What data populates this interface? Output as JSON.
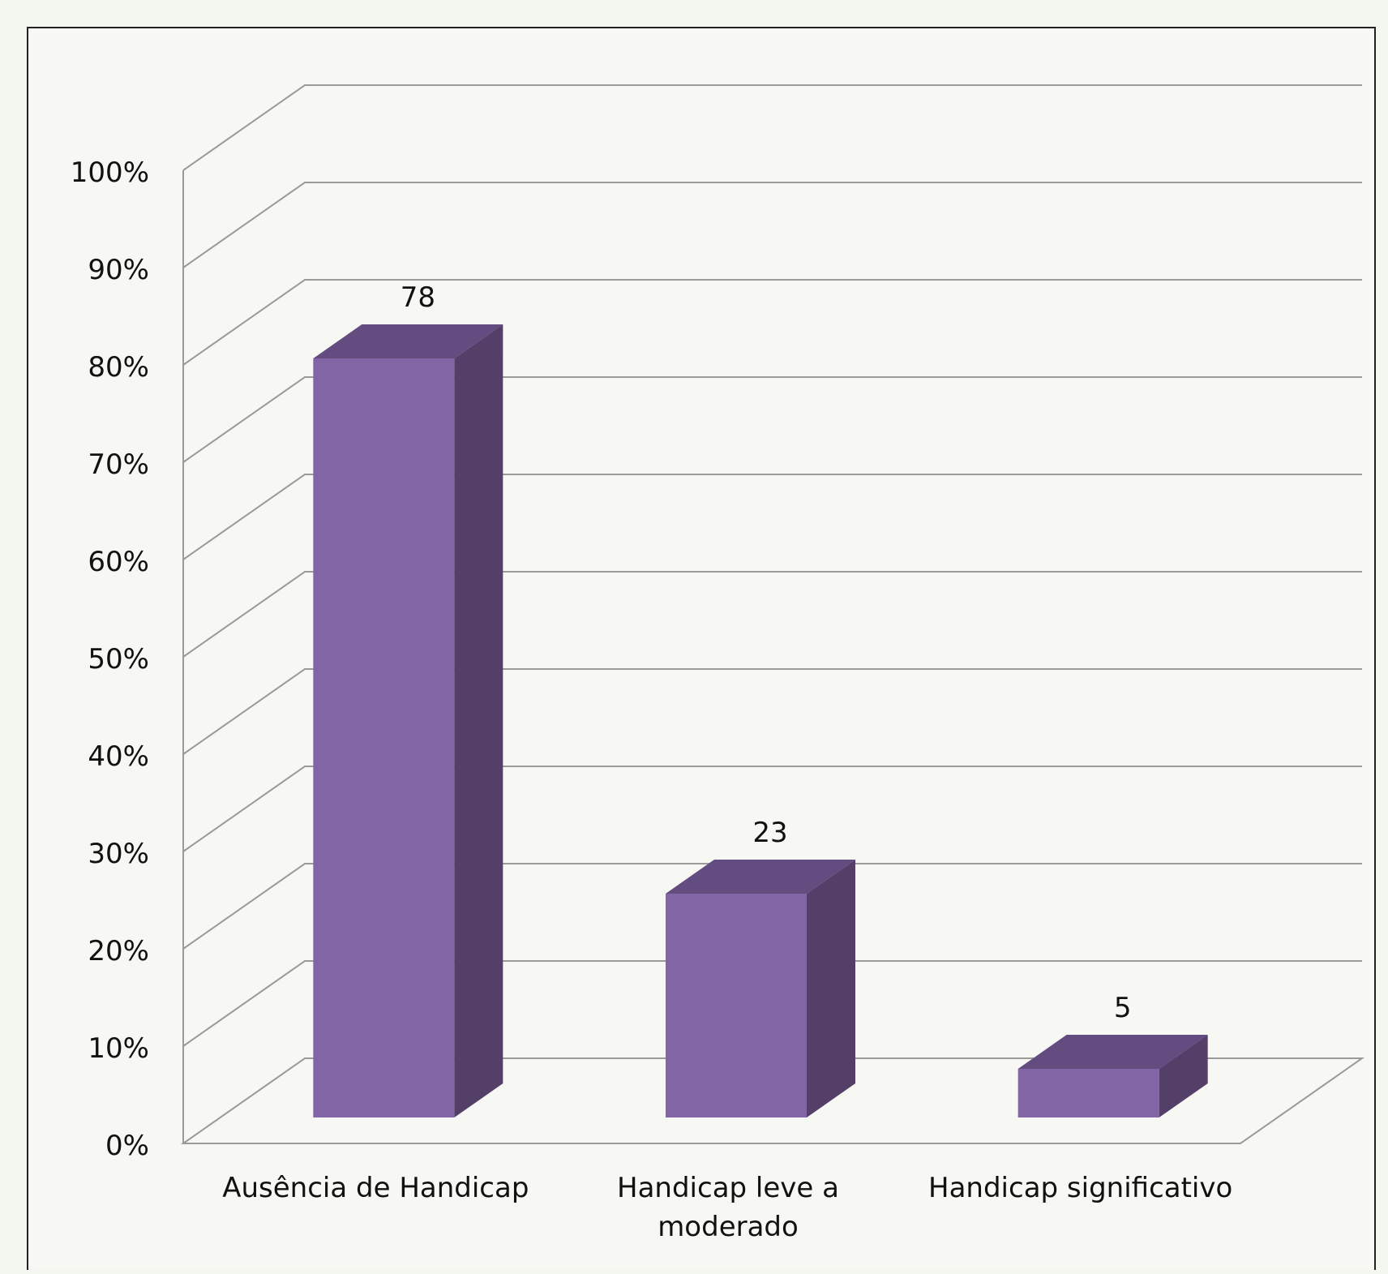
{
  "chart_data": {
    "type": "bar",
    "title": "",
    "xlabel": "",
    "ylabel": "",
    "categories": [
      "Ausência de Handicap",
      "Handicap leve a moderado",
      "Handicap significativo"
    ],
    "category_lines": [
      [
        "Ausência de Handicap"
      ],
      [
        "Handicap leve a",
        "moderado"
      ],
      [
        "Handicap significativo"
      ]
    ],
    "values": [
      78,
      23,
      5
    ],
    "data_labels": [
      "78",
      "23",
      "5"
    ],
    "ylim": [
      0,
      100
    ],
    "y_ticks": [
      0,
      10,
      20,
      30,
      40,
      50,
      60,
      70,
      80,
      90,
      100
    ],
    "y_tick_labels": [
      "0%",
      "10%",
      "20%",
      "30%",
      "40%",
      "50%",
      "60%",
      "70%",
      "80%",
      "90%",
      "100%"
    ],
    "style": "3d-column",
    "grid": true,
    "legend": "none",
    "colors": {
      "bar_front": "#8165a5",
      "bar_side": "#533f68",
      "bar_top": "#634c80",
      "grid": "#9a9a9a",
      "frame": "#222222",
      "background": "#f4f6f0"
    }
  }
}
